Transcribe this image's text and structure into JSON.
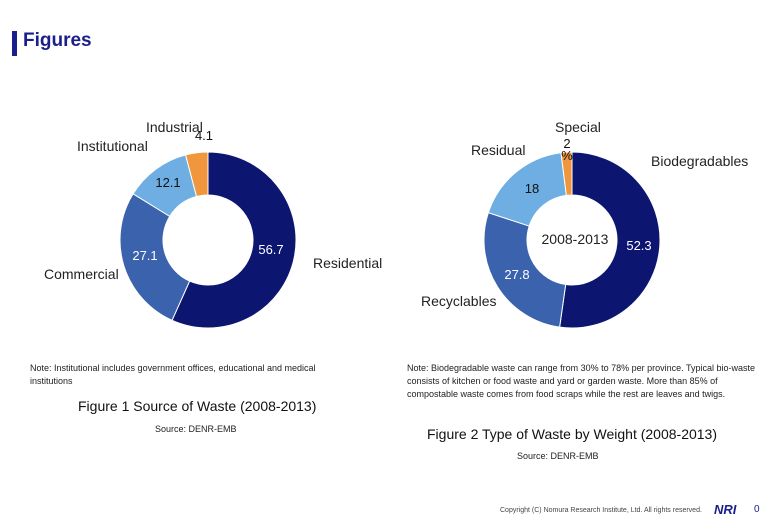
{
  "page": {
    "title": "Figures",
    "page_number": "0"
  },
  "chart_data": [
    {
      "type": "pie",
      "donut": true,
      "title": "Figure 1 Source of Waste (2008-2013)",
      "center_label": "",
      "slices": [
        {
          "name": "Residential",
          "value": 56.7,
          "value_label": "56.7",
          "color": "#0c1670"
        },
        {
          "name": "Commercial",
          "value": 27.1,
          "value_label": "27.1",
          "color": "#3a62ad"
        },
        {
          "name": "Institutional",
          "value": 12.1,
          "value_label": "12.1",
          "color": "#6eaee3"
        },
        {
          "name": "Industrial",
          "value": 4.1,
          "value_label": "4.1",
          "color": "#f0963c"
        }
      ],
      "note": "Note: Institutional includes government offices, educational and medical institutions",
      "source": "Source: DENR-EMB"
    },
    {
      "type": "pie",
      "donut": true,
      "title": "Figure 2  Type of Waste by Weight (2008-2013)",
      "center_label": "2008-2013",
      "slices": [
        {
          "name": "Biodegradables",
          "value": 52.3,
          "value_label": "52.3",
          "color": "#0c1670"
        },
        {
          "name": "Recyclables",
          "value": 27.8,
          "value_label": "27.8",
          "color": "#3a62ad"
        },
        {
          "name": "Residual",
          "value": 18,
          "value_label": "18",
          "color": "#6eaee3"
        },
        {
          "name": "Special",
          "value": 2,
          "value_label": "2\n%",
          "color": "#f0963c"
        }
      ],
      "note": "Note: Biodegradable waste can range from 30% to 78% per province. Typical bio-waste consists of kitchen or food waste and yard or garden waste. More than 85% of compostable waste comes from food scraps while the rest are leaves and twigs.",
      "source": "Source: DENR-EMB"
    }
  ],
  "footer": {
    "copyright": "Copyright (C) Nomura Research Institute, Ltd. All rights reserved.",
    "logo": "NRI"
  }
}
